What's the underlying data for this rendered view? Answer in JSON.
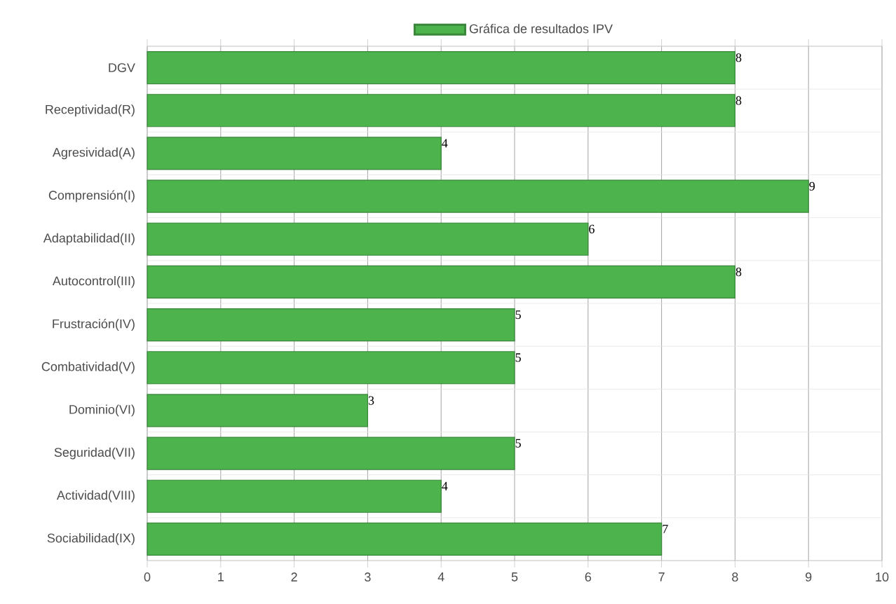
{
  "chart_data": {
    "type": "bar",
    "orientation": "horizontal",
    "categories": [
      "DGV",
      "Receptividad(R)",
      "Agresividad(A)",
      "Comprensión(I)",
      "Adaptabilidad(II)",
      "Autocontrol(III)",
      "Frustración(IV)",
      "Combatividad(V)",
      "Dominio(VI)",
      "Seguridad(VII)",
      "Actividad(VIII)",
      "Sociabilidad(IX)"
    ],
    "series": [
      {
        "name": "Gráfica de resultados IPV",
        "color": "#4db34d",
        "values": [
          8,
          8,
          4,
          9,
          6,
          8,
          5,
          5,
          3,
          5,
          4,
          7
        ]
      }
    ],
    "xlim": [
      0,
      10
    ],
    "xticks": [
      0,
      1,
      2,
      3,
      4,
      5,
      6,
      7,
      8,
      9,
      10
    ],
    "grid": true,
    "legend": "top",
    "data_labels": true
  }
}
